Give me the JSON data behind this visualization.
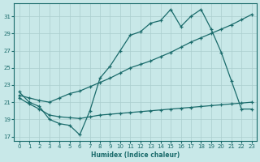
{
  "xlabel": "Humidex (Indice chaleur)",
  "bg_color": "#c8e8e8",
  "line_color": "#1a6b6b",
  "grid_color": "#aacece",
  "xlim": [
    -0.5,
    23.5
  ],
  "ylim": [
    16.5,
    32.5
  ],
  "xticks": [
    0,
    1,
    2,
    3,
    4,
    5,
    6,
    7,
    8,
    9,
    10,
    11,
    12,
    13,
    14,
    15,
    16,
    17,
    18,
    19,
    20,
    21,
    22,
    23
  ],
  "yticks": [
    17,
    19,
    21,
    23,
    25,
    27,
    29,
    31
  ],
  "line1_x": [
    0,
    1,
    2,
    3,
    4,
    5,
    6,
    7,
    8,
    9,
    10,
    11,
    12,
    13,
    14,
    15,
    16,
    17,
    18,
    19,
    20,
    21,
    22,
    23
  ],
  "line1_y": [
    22.2,
    21.0,
    20.5,
    19.0,
    18.5,
    18.3,
    17.2,
    20.0,
    23.8,
    25.2,
    27.0,
    28.8,
    29.2,
    30.2,
    30.5,
    31.8,
    29.8,
    31.0,
    31.8,
    29.5,
    26.8,
    23.5,
    20.2,
    20.2
  ],
  "line2_x": [
    0,
    1,
    2,
    3,
    4,
    5,
    6,
    7,
    8,
    9,
    10,
    11,
    12,
    13,
    14,
    15,
    16,
    17,
    18,
    19,
    20,
    21,
    22,
    23
  ],
  "line2_y": [
    21.8,
    21.5,
    21.2,
    21.0,
    21.5,
    22.0,
    22.3,
    22.8,
    23.3,
    23.8,
    24.4,
    25.0,
    25.4,
    25.8,
    26.3,
    26.8,
    27.4,
    28.0,
    28.5,
    29.0,
    29.5,
    30.0,
    30.6,
    31.2
  ],
  "line3_x": [
    0,
    1,
    2,
    3,
    4,
    5,
    6,
    7,
    8,
    9,
    10,
    11,
    12,
    13,
    14,
    15,
    16,
    17,
    18,
    19,
    20,
    21,
    22,
    23
  ],
  "line3_y": [
    21.5,
    20.8,
    20.2,
    19.5,
    19.3,
    19.2,
    19.1,
    19.3,
    19.5,
    19.6,
    19.7,
    19.8,
    19.9,
    20.0,
    20.1,
    20.2,
    20.3,
    20.4,
    20.5,
    20.6,
    20.7,
    20.8,
    20.9,
    21.0
  ]
}
